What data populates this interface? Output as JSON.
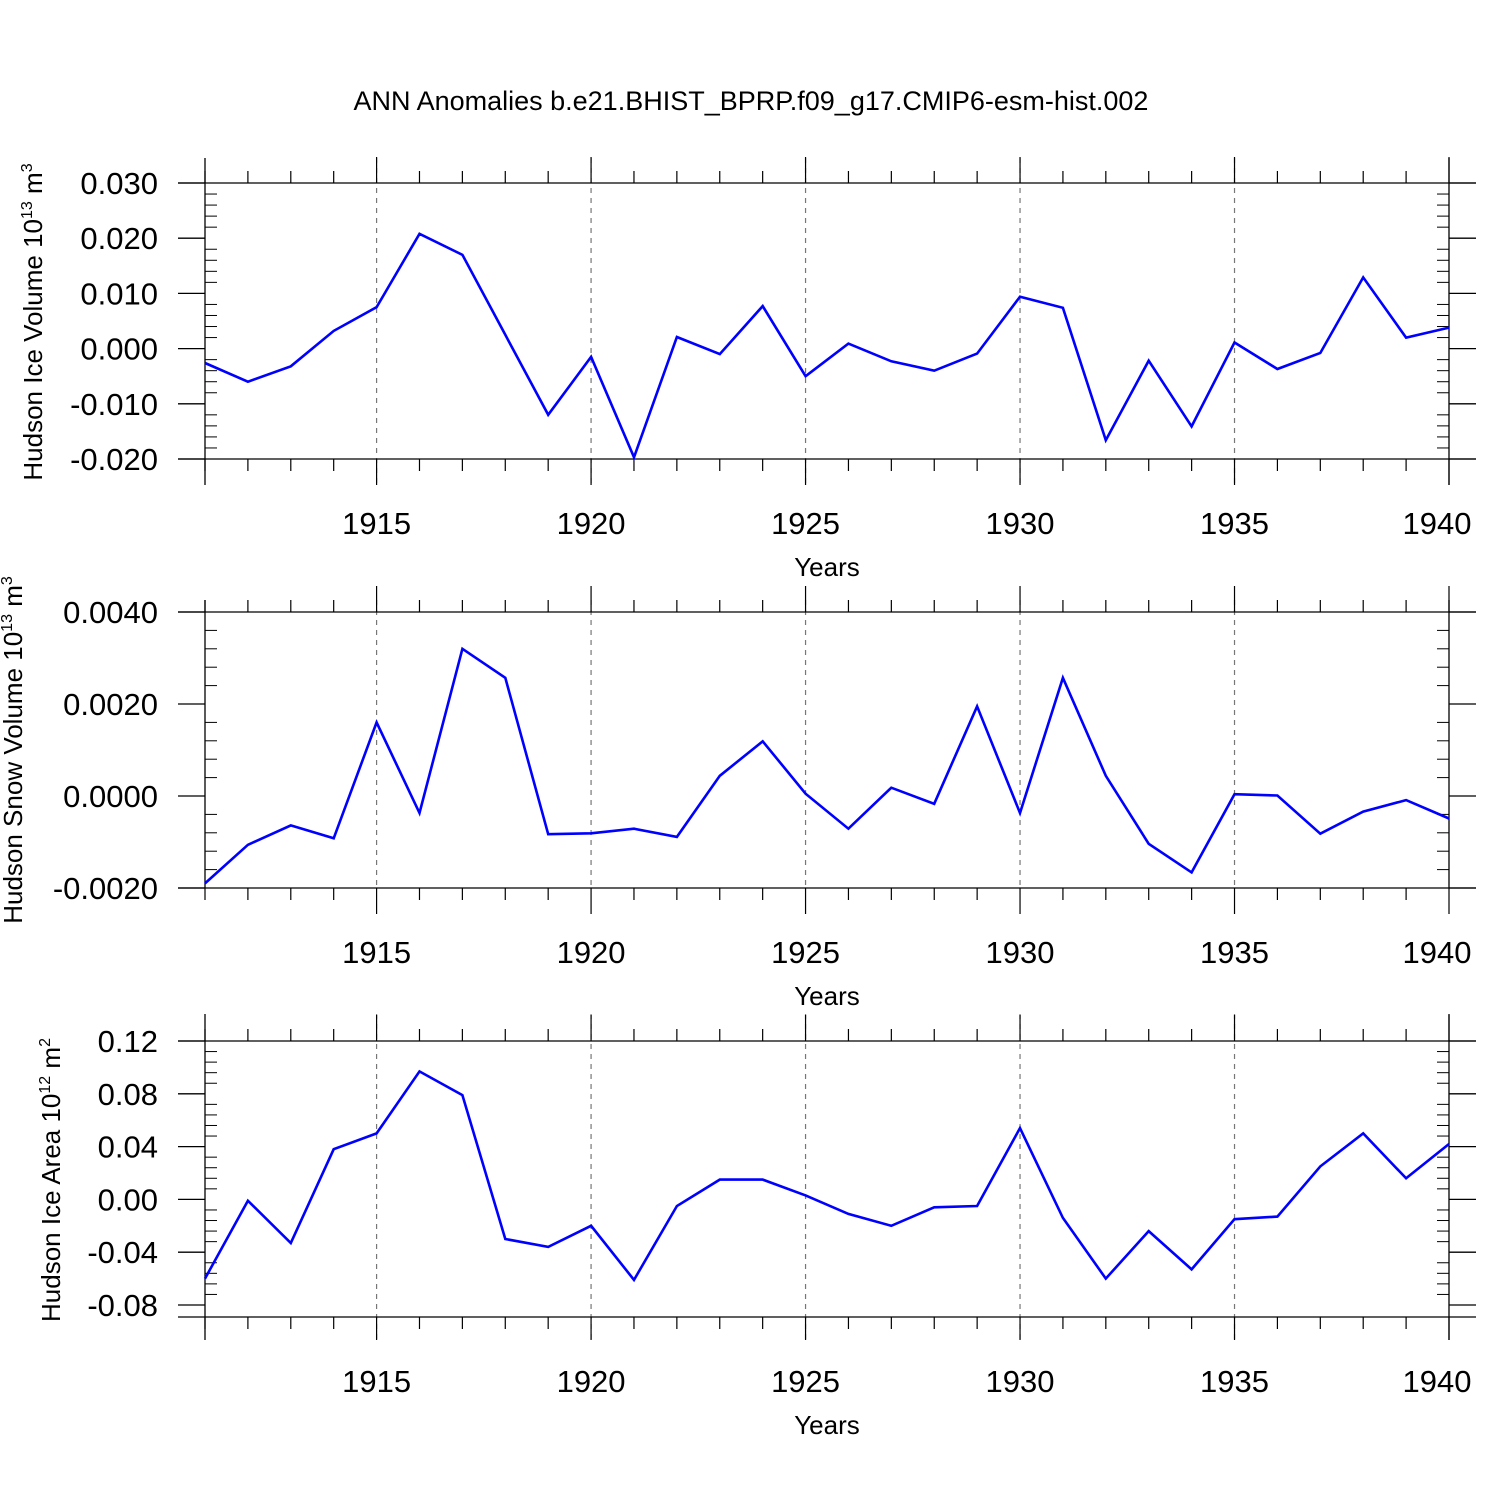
{
  "figure": {
    "title": "ANN Anomalies b.e21.BHIST_BPRP.f09_g17.CMIP6-esm-hist.002"
  },
  "chart_data": [
    {
      "type": "line",
      "ylabel": {
        "text": "Hudson Ice Volume 10",
        "exp": "13",
        "unit": " m",
        "unit_exp": "3"
      },
      "xlabel": "Years",
      "xlim": [
        1911,
        1940
      ],
      "ylim": [
        -0.02,
        0.03
      ],
      "yticks": [
        -0.02,
        -0.01,
        0.0,
        0.01,
        0.02,
        0.03
      ],
      "ytick_labels": [
        "-0.020",
        "-0.010",
        "0.000",
        "0.010",
        "0.020",
        "0.030"
      ],
      "xticks": [
        1915,
        1920,
        1925,
        1930,
        1935,
        1940
      ],
      "xtick_labels": [
        "1915",
        "1920",
        "1925",
        "1930",
        "1935",
        "1940"
      ],
      "grid": "vertical-dashed",
      "line_color": "#0000ff",
      "x": [
        1911,
        1912,
        1913,
        1914,
        1915,
        1916,
        1917,
        1918,
        1919,
        1920,
        1921,
        1922,
        1923,
        1924,
        1925,
        1926,
        1927,
        1928,
        1929,
        1930,
        1931,
        1932,
        1933,
        1934,
        1935,
        1936,
        1937,
        1938,
        1939,
        1940
      ],
      "values": [
        -0.0026,
        -0.006,
        -0.0032,
        0.0032,
        0.0075,
        0.0208,
        0.017,
        0.0025,
        -0.012,
        -0.0015,
        -0.0197,
        0.0021,
        -0.001,
        0.0077,
        -0.005,
        0.0009,
        -0.0023,
        -0.004,
        -0.0009,
        0.0094,
        0.0074,
        -0.0166,
        -0.0022,
        -0.0141,
        0.0011,
        -0.0037,
        -0.0008,
        0.0129,
        0.002,
        0.0038
      ]
    },
    {
      "type": "line",
      "ylabel": {
        "text": "Hudson Snow Volume 10",
        "exp": "13",
        "unit": " m",
        "unit_exp": "3"
      },
      "xlabel": "Years",
      "xlim": [
        1911,
        1940
      ],
      "ylim": [
        -0.002,
        0.004
      ],
      "yticks": [
        -0.002,
        0.0,
        0.002,
        0.004
      ],
      "ytick_labels": [
        "-0.0020",
        "0.0000",
        "0.0020",
        "0.0040"
      ],
      "xticks": [
        1915,
        1920,
        1925,
        1930,
        1935,
        1940
      ],
      "xtick_labels": [
        "1915",
        "1920",
        "1925",
        "1930",
        "1935",
        "1940"
      ],
      "grid": "vertical-dashed",
      "line_color": "#0000ff",
      "x": [
        1911,
        1912,
        1913,
        1914,
        1915,
        1916,
        1917,
        1918,
        1919,
        1920,
        1921,
        1922,
        1923,
        1924,
        1925,
        1926,
        1927,
        1928,
        1929,
        1930,
        1931,
        1932,
        1933,
        1934,
        1935,
        1936,
        1937,
        1938,
        1939,
        1940
      ],
      "values": [
        -0.0019,
        -0.00106,
        -0.00064,
        -0.00092,
        0.0016,
        -0.00037,
        0.0032,
        0.00257,
        -0.00083,
        -0.00081,
        -0.00071,
        -0.00089,
        0.00044,
        0.00119,
        5e-05,
        -0.00071,
        0.00018,
        -0.00017,
        0.00195,
        -0.00037,
        0.00257,
        0.00044,
        -0.00104,
        -0.00166,
        4e-05,
        1e-05,
        -0.00082,
        -0.00034,
        -9e-05,
        -0.00049
      ]
    },
    {
      "type": "line",
      "ylabel": {
        "text": "Hudson Ice Area 10",
        "exp": "12",
        "unit": " m",
        "unit_exp": "2"
      },
      "xlabel": "Years",
      "xlim": [
        1911,
        1940
      ],
      "ylim": [
        -0.09,
        0.12
      ],
      "yticks": [
        -0.08,
        -0.04,
        0.0,
        0.04,
        0.08,
        0.12
      ],
      "ytick_labels": [
        "-0.08",
        "-0.04",
        "0.00",
        "0.04",
        "0.08",
        "0.12"
      ],
      "xticks": [
        1915,
        1920,
        1925,
        1930,
        1935,
        1940
      ],
      "xtick_labels": [
        "1915",
        "1920",
        "1925",
        "1930",
        "1935",
        "1940"
      ],
      "grid": "vertical-dashed",
      "line_color": "#0000ff",
      "x": [
        1911,
        1912,
        1913,
        1914,
        1915,
        1916,
        1917,
        1918,
        1919,
        1920,
        1921,
        1922,
        1923,
        1924,
        1925,
        1926,
        1927,
        1928,
        1929,
        1930,
        1931,
        1932,
        1933,
        1934,
        1935,
        1936,
        1937,
        1938,
        1939,
        1940
      ],
      "values": [
        -0.06,
        -0.001,
        -0.033,
        0.038,
        0.05,
        0.097,
        0.079,
        -0.03,
        -0.036,
        -0.02,
        -0.061,
        -0.005,
        0.015,
        0.015,
        0.003,
        -0.011,
        -0.02,
        -0.006,
        -0.005,
        0.054,
        -0.014,
        -0.06,
        -0.024,
        -0.053,
        -0.015,
        -0.013,
        0.025,
        0.05,
        0.016,
        0.042
      ]
    }
  ]
}
